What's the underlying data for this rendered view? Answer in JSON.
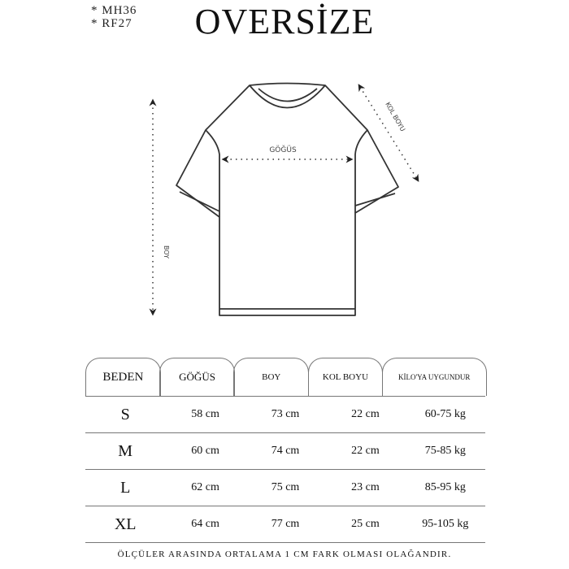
{
  "codes": [
    "* MH36",
    "* RF27"
  ],
  "title": "OVERSİZE",
  "diagram": {
    "labels": {
      "chest": "GÖĞÜS",
      "length": "BOY",
      "sleeve": "KOL BOYU"
    }
  },
  "table": {
    "headers": [
      "BEDEN",
      "GÖĞÜS",
      "BOY",
      "KOL BOYU",
      "KİLO'YA UYGUNDUR"
    ],
    "rows": [
      [
        "S",
        "58 cm",
        "73 cm",
        "22  cm",
        "60-75 kg"
      ],
      [
        "M",
        "60 cm",
        "74 cm",
        "22 cm",
        "75-85 kg"
      ],
      [
        "L",
        "62 cm",
        "75 cm",
        "23 cm",
        "85-95 kg"
      ],
      [
        "XL",
        "64 cm",
        "77 cm",
        "25 cm",
        "95-105 kg"
      ]
    ]
  },
  "footer": "ÖLÇÜLER ARASINDA ORTALAMA 1 CM FARK OLMASI OLAĞANDIR."
}
